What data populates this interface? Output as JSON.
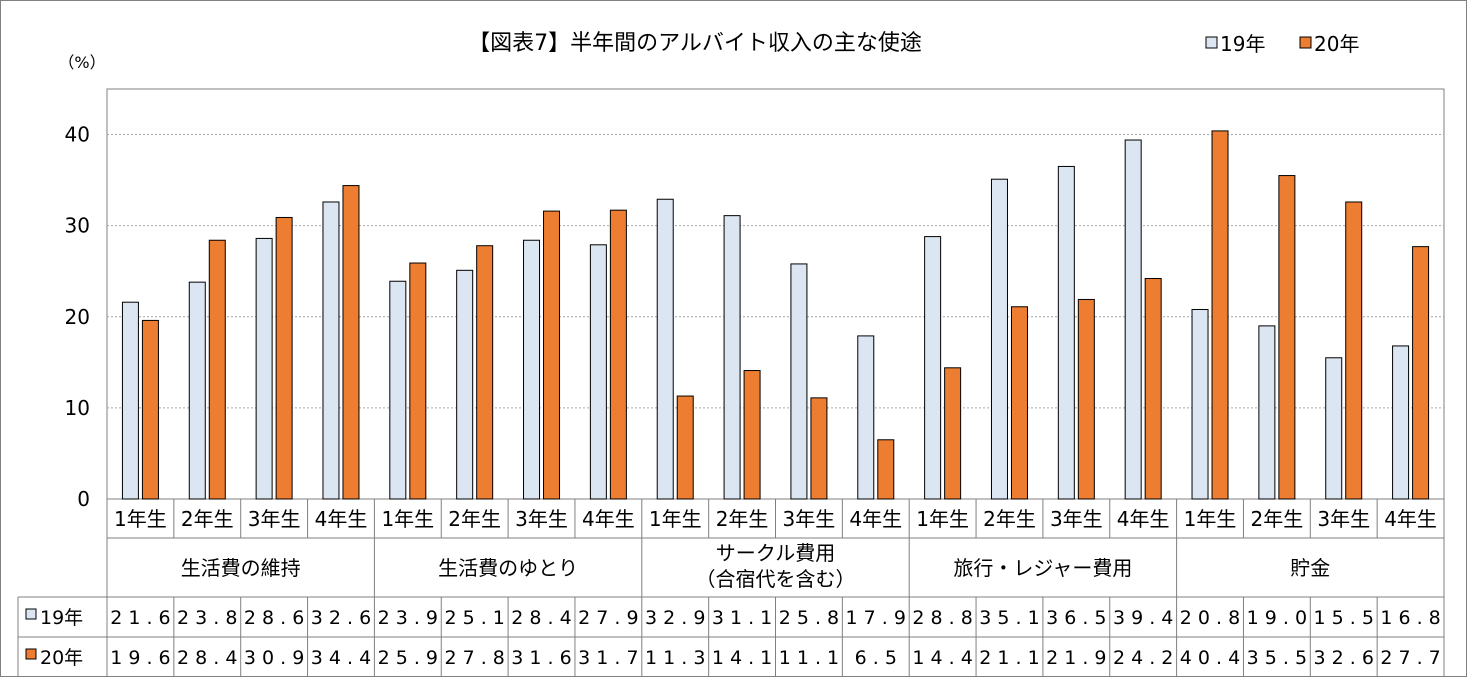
{
  "chart_data": {
    "type": "bar",
    "title": "【図表7】半年間のアルバイト収入の主な使途",
    "unit_label": "（%）",
    "ylim": [
      0,
      45
    ],
    "yticks": [
      0,
      10,
      20,
      30,
      40
    ],
    "grid": true,
    "legend_position": "top-right",
    "groups": [
      {
        "label": [
          "生活費の維持"
        ],
        "subcategories": [
          "1年生",
          "2年生",
          "3年生",
          "4年生"
        ]
      },
      {
        "label": [
          "生活費のゆとり"
        ],
        "subcategories": [
          "1年生",
          "2年生",
          "3年生",
          "4年生"
        ]
      },
      {
        "label": [
          "サークル費用",
          "（合宿代を含む）"
        ],
        "subcategories": [
          "1年生",
          "2年生",
          "3年生",
          "4年生"
        ]
      },
      {
        "label": [
          "旅行・レジャー費用"
        ],
        "subcategories": [
          "1年生",
          "2年生",
          "3年生",
          "4年生"
        ]
      },
      {
        "label": [
          "貯金"
        ],
        "subcategories": [
          "1年生",
          "2年生",
          "3年生",
          "4年生"
        ]
      }
    ],
    "series": [
      {
        "name": "19年",
        "color": "#dce6f2",
        "values": [
          21.6,
          23.8,
          28.6,
          32.6,
          23.9,
          25.1,
          28.4,
          27.9,
          32.9,
          31.1,
          25.8,
          17.9,
          28.8,
          35.1,
          36.5,
          39.4,
          20.8,
          19.0,
          15.5,
          16.8
        ],
        "labels": [
          "21.6",
          "23.8",
          "28.6",
          "32.6",
          "23.9",
          "25.1",
          "28.4",
          "27.9",
          "32.9",
          "31.1",
          "25.8",
          "17.9",
          "28.8",
          "35.1",
          "36.5",
          "39.4",
          "20.8",
          "19.0",
          "15.5",
          "16.8"
        ]
      },
      {
        "name": "20年",
        "color": "#ed7d31",
        "values": [
          19.6,
          28.4,
          30.9,
          34.4,
          25.9,
          27.8,
          31.6,
          31.7,
          11.3,
          14.1,
          11.1,
          6.5,
          14.4,
          21.1,
          21.9,
          24.2,
          40.4,
          35.5,
          32.6,
          27.7
        ],
        "labels": [
          "19.6",
          "28.4",
          "30.9",
          "34.4",
          "25.9",
          "27.8",
          "31.6",
          "31.7",
          "11.3",
          "14.1",
          "11.1",
          "6.5",
          "14.4",
          "21.1",
          "21.9",
          "24.2",
          "40.4",
          "35.5",
          "32.6",
          "27.7"
        ]
      }
    ]
  }
}
